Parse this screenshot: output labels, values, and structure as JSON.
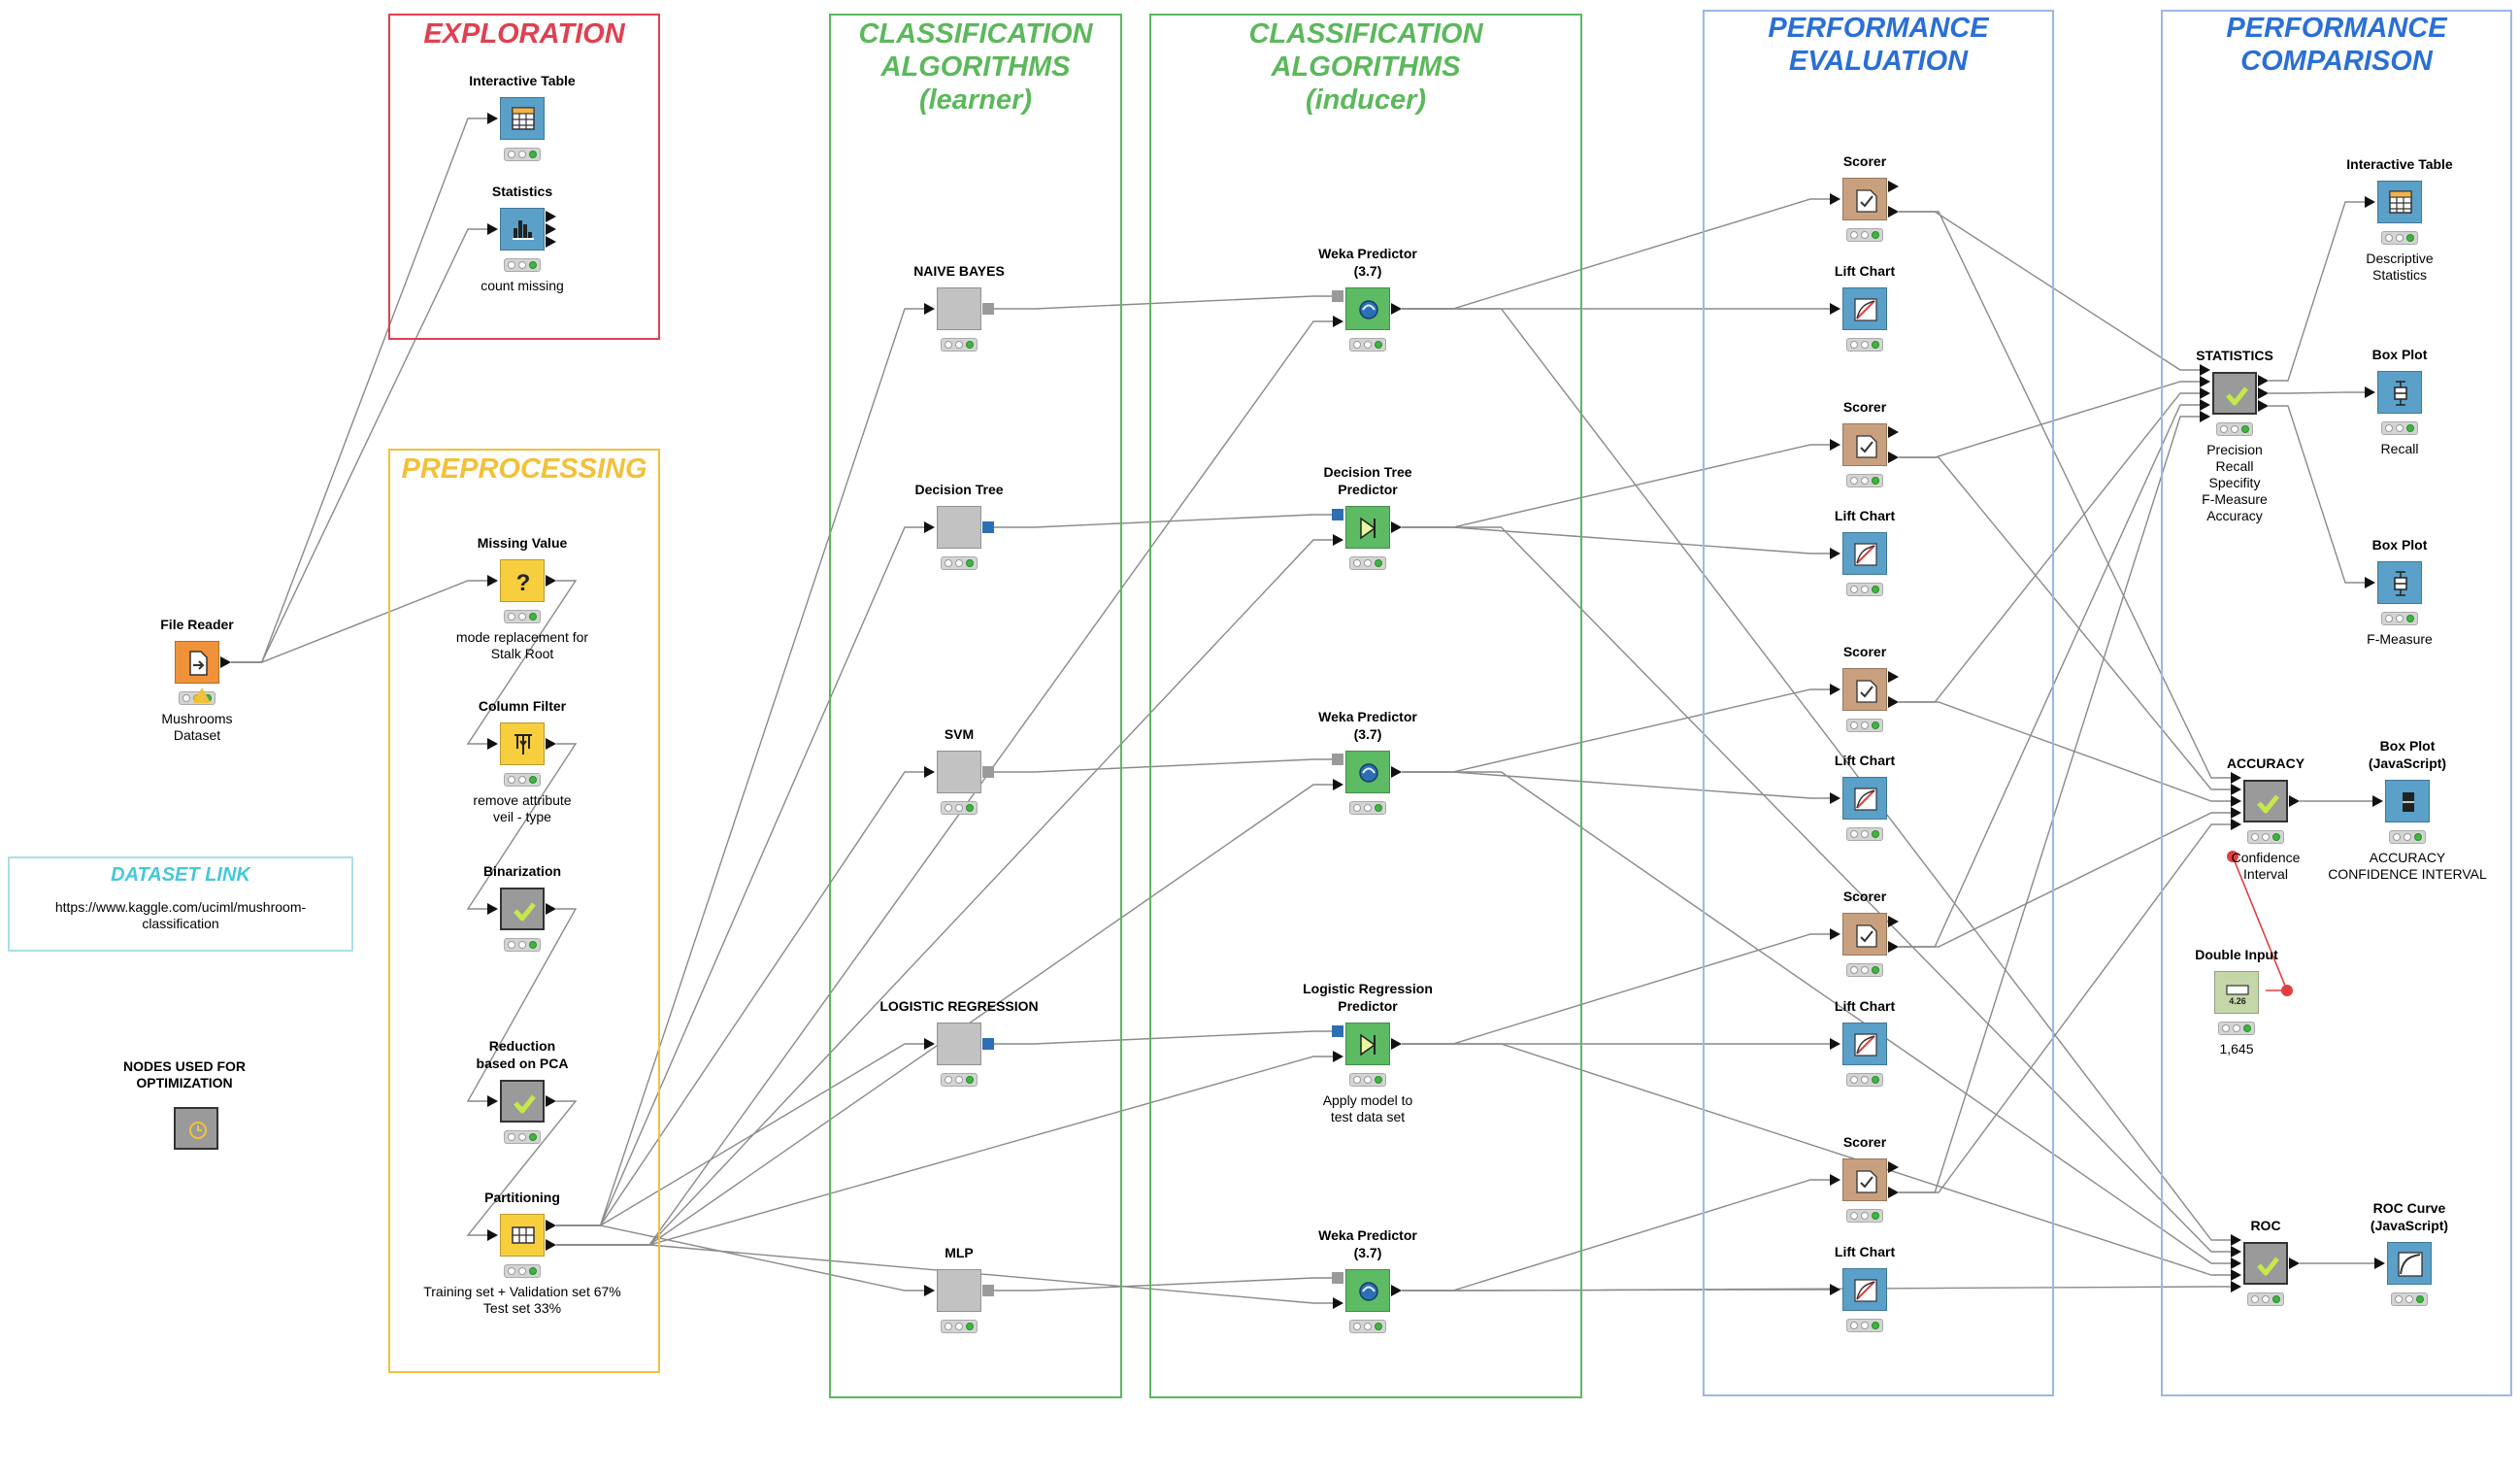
{
  "colors": {
    "exploration": "#e04050",
    "preprocessing": "#f2c13a",
    "classification": "#5cb85c",
    "performance": "#2a6fd6",
    "dataset_link": "#45c8d8",
    "connection": "#8a8a8a"
  },
  "sections": {
    "exploration": "EXPLORATION",
    "preprocessing": "PREPROCESSING",
    "learner": "CLASSIFICATION\nALGORITHMS\n(learner)",
    "inducer": "CLASSIFICATION\nALGORITHMS\n(inducer)",
    "evaluation": "PERFORMANCE\nEVALUATION",
    "comparison": "PERFORMANCE\nCOMPARISON",
    "dataset_link": "DATASET LINK"
  },
  "dataset_link_url": "https://www.kaggle.com/uciml/mushroom-\nclassification",
  "optimization_label": "NODES USED FOR\nOPTIMIZATION",
  "nodes": {
    "file_reader": {
      "label": "File Reader",
      "desc": "Mushrooms\nDataset",
      "icon": "file-reader-icon"
    },
    "interactive_table_1": {
      "label": "Interactive Table",
      "desc": "",
      "icon": "table-icon"
    },
    "statistics_1": {
      "label": "Statistics",
      "desc": "count missing",
      "icon": "statistics-icon"
    },
    "missing_value": {
      "label": "Missing Value",
      "desc": "mode replacement for\nStalk Root",
      "icon": "question-icon"
    },
    "column_filter": {
      "label": "Column Filter",
      "desc": "remove attribute\nveil - type",
      "icon": "filter-icon"
    },
    "binarization": {
      "label": "Binarization",
      "desc": "",
      "icon": "metanode-check-icon"
    },
    "reduction": {
      "label": "Reduction\nbased on PCA",
      "desc": "",
      "icon": "metanode-check-icon"
    },
    "partitioning": {
      "label": "Partitioning",
      "desc": "Training set + Validation set 67%\nTest set 33%",
      "icon": "partition-icon"
    },
    "naive_bayes": {
      "label": "NAIVE BAYES",
      "desc": "",
      "icon": "learner-icon"
    },
    "decision_tree": {
      "label": "Decision Tree",
      "desc": "",
      "icon": "learner-icon"
    },
    "svm": {
      "label": "SVM",
      "desc": "",
      "icon": "learner-icon"
    },
    "logistic_regression": {
      "label": "LOGISTIC REGRESSION",
      "desc": "",
      "icon": "learner-icon"
    },
    "mlp": {
      "label": "MLP",
      "desc": "",
      "icon": "learner-icon"
    },
    "weka_pred_1": {
      "label": "Weka Predictor\n(3.7)",
      "desc": "",
      "icon": "weka-predictor-icon"
    },
    "dt_predictor": {
      "label": "Decision Tree\nPredictor",
      "desc": "",
      "icon": "predictor-icon"
    },
    "weka_pred_2": {
      "label": "Weka Predictor\n(3.7)",
      "desc": "",
      "icon": "weka-predictor-icon"
    },
    "lr_predictor": {
      "label": "Logistic Regression\nPredictor",
      "desc": "Apply model to\ntest data set",
      "icon": "predictor-icon"
    },
    "weka_pred_3": {
      "label": "Weka Predictor\n(3.7)",
      "desc": "",
      "icon": "weka-predictor-icon"
    },
    "scorer_1": {
      "label": "Scorer",
      "desc": "",
      "icon": "scorer-icon"
    },
    "lift_1": {
      "label": "Lift Chart",
      "desc": "",
      "icon": "lift-chart-icon"
    },
    "scorer_2": {
      "label": "Scorer",
      "desc": "",
      "icon": "scorer-icon"
    },
    "lift_2": {
      "label": "Lift Chart",
      "desc": "",
      "icon": "lift-chart-icon"
    },
    "scorer_3": {
      "label": "Scorer",
      "desc": "",
      "icon": "scorer-icon"
    },
    "lift_3": {
      "label": "Lift Chart",
      "desc": "",
      "icon": "lift-chart-icon"
    },
    "scorer_4": {
      "label": "Scorer",
      "desc": "",
      "icon": "scorer-icon"
    },
    "lift_4": {
      "label": "Lift Chart",
      "desc": "",
      "icon": "lift-chart-icon"
    },
    "scorer_5": {
      "label": "Scorer",
      "desc": "",
      "icon": "scorer-icon"
    },
    "lift_5": {
      "label": "Lift Chart",
      "desc": "",
      "icon": "lift-chart-icon"
    },
    "statistics_meta": {
      "label": "STATISTICS",
      "desc": "Precision\nRecall\nSpecifity\nF-Measure\nAccuracy",
      "icon": "metanode-check-icon"
    },
    "interactive_table_2": {
      "label": "Interactive Table",
      "desc": "Descriptive\nStatistics",
      "icon": "table-icon"
    },
    "box_plot_1": {
      "label": "Box Plot",
      "desc": "Recall",
      "icon": "box-plot-icon"
    },
    "box_plot_2": {
      "label": "Box Plot",
      "desc": "F-Measure",
      "icon": "box-plot-icon"
    },
    "accuracy_meta": {
      "label": "ACCURACY",
      "desc": "Confidence\nInterval",
      "icon": "metanode-check-icon"
    },
    "box_plot_js": {
      "label": "Box Plot\n(JavaScript)",
      "desc": "ACCURACY\nCONFIDENCE INTERVAL",
      "icon": "box-plot-js-icon"
    },
    "double_input": {
      "label": "Double Input",
      "desc": "1,645",
      "icon": "double-input-icon"
    },
    "roc_meta": {
      "label": "ROC",
      "desc": "",
      "icon": "metanode-check-icon"
    },
    "roc_curve": {
      "label": "ROC Curve\n(JavaScript)",
      "desc": "",
      "icon": "roc-curve-icon"
    },
    "optimization_node": {
      "label": "",
      "desc": "",
      "icon": "optimization-icon"
    }
  },
  "double_input_display": "4.26"
}
